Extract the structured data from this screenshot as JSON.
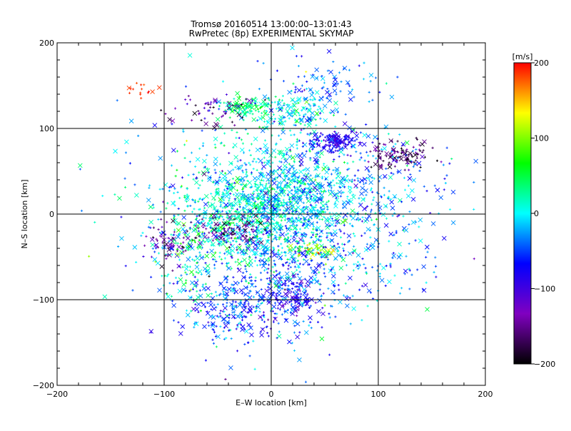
{
  "chart_data": {
    "type": "scatter",
    "title": "Tromsø 20160514 13:00:00–13:01:43",
    "subtitle": "RwPretec (8p) EXPERIMENTAL SKYMAP",
    "xlabel": "E–W location [km]",
    "ylabel": "N–S location [km]",
    "xlim": [
      -200,
      200
    ],
    "ylim": [
      -200,
      200
    ],
    "x_ticks": [
      -200,
      -100,
      0,
      100,
      200
    ],
    "y_ticks": [
      -200,
      -100,
      0,
      100,
      200
    ],
    "x_tick_labels": [
      "−200",
      "−100",
      "0",
      "100",
      "200"
    ],
    "y_tick_labels": [
      "−200",
      "−100",
      "0",
      "100",
      "200"
    ],
    "grid": true,
    "colorbar": {
      "label": "[m/s]",
      "range": [
        -200,
        200
      ],
      "ticks": [
        200,
        100,
        0,
        -100,
        -200
      ],
      "tick_labels": [
        "200",
        "100",
        "0",
        "−100",
        "−200"
      ],
      "colormap": [
        "#000000",
        "#8000c0",
        "#0000ff",
        "#00ffff",
        "#00ff00",
        "#ffff00",
        "#ff0000"
      ]
    },
    "marker_types": [
      "x",
      "+"
    ],
    "clusters": [
      {
        "x": 0,
        "y": 10,
        "sx": 40,
        "sy": 35,
        "n": 900,
        "v": 10,
        "vs": 25
      },
      {
        "x": -45,
        "y": -10,
        "sx": 30,
        "sy": 30,
        "n": 300,
        "v": 20,
        "vs": 30
      },
      {
        "x": 25,
        "y": 20,
        "sx": 30,
        "sy": 30,
        "n": 350,
        "v": -30,
        "vs": 30
      },
      {
        "x": -25,
        "y": 125,
        "sx": 12,
        "sy": 6,
        "n": 120,
        "v": 40,
        "vs": 20
      },
      {
        "x": 25,
        "y": 115,
        "sx": 20,
        "sy": 15,
        "n": 150,
        "v": 0,
        "vs": 30
      },
      {
        "x": 60,
        "y": 85,
        "sx": 10,
        "sy": 5,
        "n": 150,
        "v": -90,
        "vs": 15
      },
      {
        "x": 120,
        "y": 70,
        "sx": 15,
        "sy": 8,
        "n": 110,
        "v": -160,
        "vs": 25
      },
      {
        "x": -50,
        "y": 120,
        "sx": 20,
        "sy": 10,
        "n": 60,
        "v": -140,
        "vs": 40
      },
      {
        "x": -95,
        "y": -35,
        "sx": 10,
        "sy": 12,
        "n": 60,
        "v": -140,
        "vs": 30
      },
      {
        "x": -40,
        "y": -20,
        "sx": 20,
        "sy": 10,
        "n": 100,
        "v": -150,
        "vs": 30
      },
      {
        "x": 20,
        "y": -90,
        "sx": 15,
        "sy": 15,
        "n": 120,
        "v": -90,
        "vs": 25
      },
      {
        "x": -30,
        "y": -110,
        "sx": 30,
        "sy": 25,
        "n": 300,
        "v": -50,
        "vs": 30
      },
      {
        "x": 20,
        "y": -60,
        "sx": 30,
        "sy": 30,
        "n": 250,
        "v": -40,
        "vs": 30
      },
      {
        "x": 40,
        "y": -45,
        "sx": 8,
        "sy": 6,
        "n": 40,
        "v": 110,
        "vs": 30
      },
      {
        "x": -120,
        "y": 145,
        "sx": 8,
        "sy": 4,
        "n": 15,
        "v": 190,
        "vs": 10
      },
      {
        "x": 100,
        "y": 30,
        "sx": 30,
        "sy": 40,
        "n": 200,
        "v": -40,
        "vs": 30
      },
      {
        "x": -75,
        "y": -60,
        "sx": 15,
        "sy": 30,
        "n": 80,
        "v": 10,
        "vs": 40
      },
      {
        "x": 50,
        "y": 150,
        "sx": 20,
        "sy": 15,
        "n": 80,
        "v": -40,
        "vs": 20
      },
      {
        "x": -110,
        "y": 20,
        "sx": 30,
        "sy": 50,
        "n": 60,
        "v": -40,
        "vs": 30
      },
      {
        "x": 100,
        "y": -60,
        "sx": 30,
        "sy": 30,
        "n": 60,
        "v": -40,
        "vs": 30
      },
      {
        "x": 0,
        "y": 0,
        "sx": 90,
        "sy": 90,
        "n": 250,
        "v": -30,
        "vs": 60
      }
    ]
  }
}
